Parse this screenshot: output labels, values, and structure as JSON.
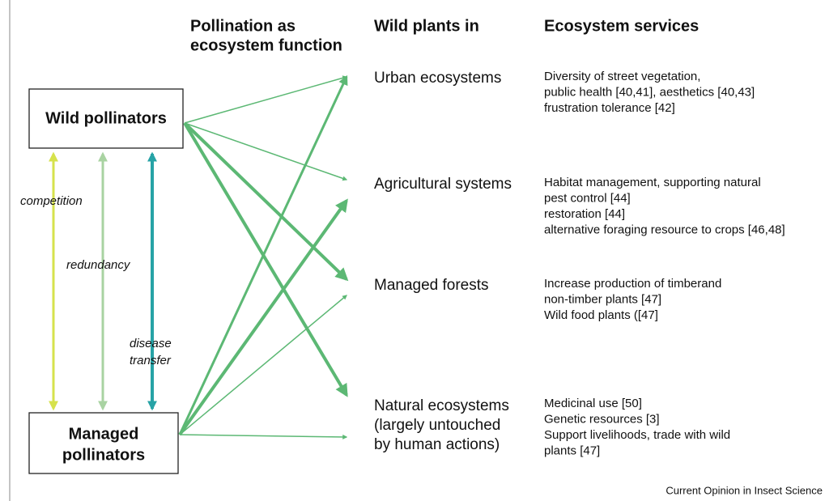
{
  "headers": {
    "function": [
      "Pollination as",
      "ecosystem function"
    ],
    "plants": "Wild plants in",
    "services": "Ecosystem services"
  },
  "nodes": {
    "wild": "Wild pollinators",
    "managed": [
      "Managed",
      "pollinators"
    ]
  },
  "relations": {
    "competition": "competition",
    "redundancy": "redundancy",
    "disease": [
      "disease",
      "transfer"
    ]
  },
  "systems": [
    {
      "name": [
        "Urban ecosystems"
      ],
      "services": [
        "Diversity of street vegetation,",
        "public health [40,41], aesthetics [40,43]",
        "frustration tolerance [42]"
      ]
    },
    {
      "name": [
        "Agricultural systems"
      ],
      "services": [
        "Habitat management, supporting natural",
        "pest control [44]",
        "restoration [44]",
        "alternative foraging resource to crops [46,48]"
      ]
    },
    {
      "name": [
        "Managed forests"
      ],
      "services": [
        "Increase production of timberand",
        "non-timber plants [47]",
        "Wild food plants ([47]"
      ]
    },
    {
      "name": [
        "Natural ecosystems",
        "(largely untouched",
        "by human actions)"
      ],
      "services": [
        "Medicinal use [50]",
        "Genetic resources [3]",
        "Support livelihoods, trade with wild",
        "plants [47]"
      ]
    }
  ],
  "footer": "Current Opinion in Insect Science"
}
